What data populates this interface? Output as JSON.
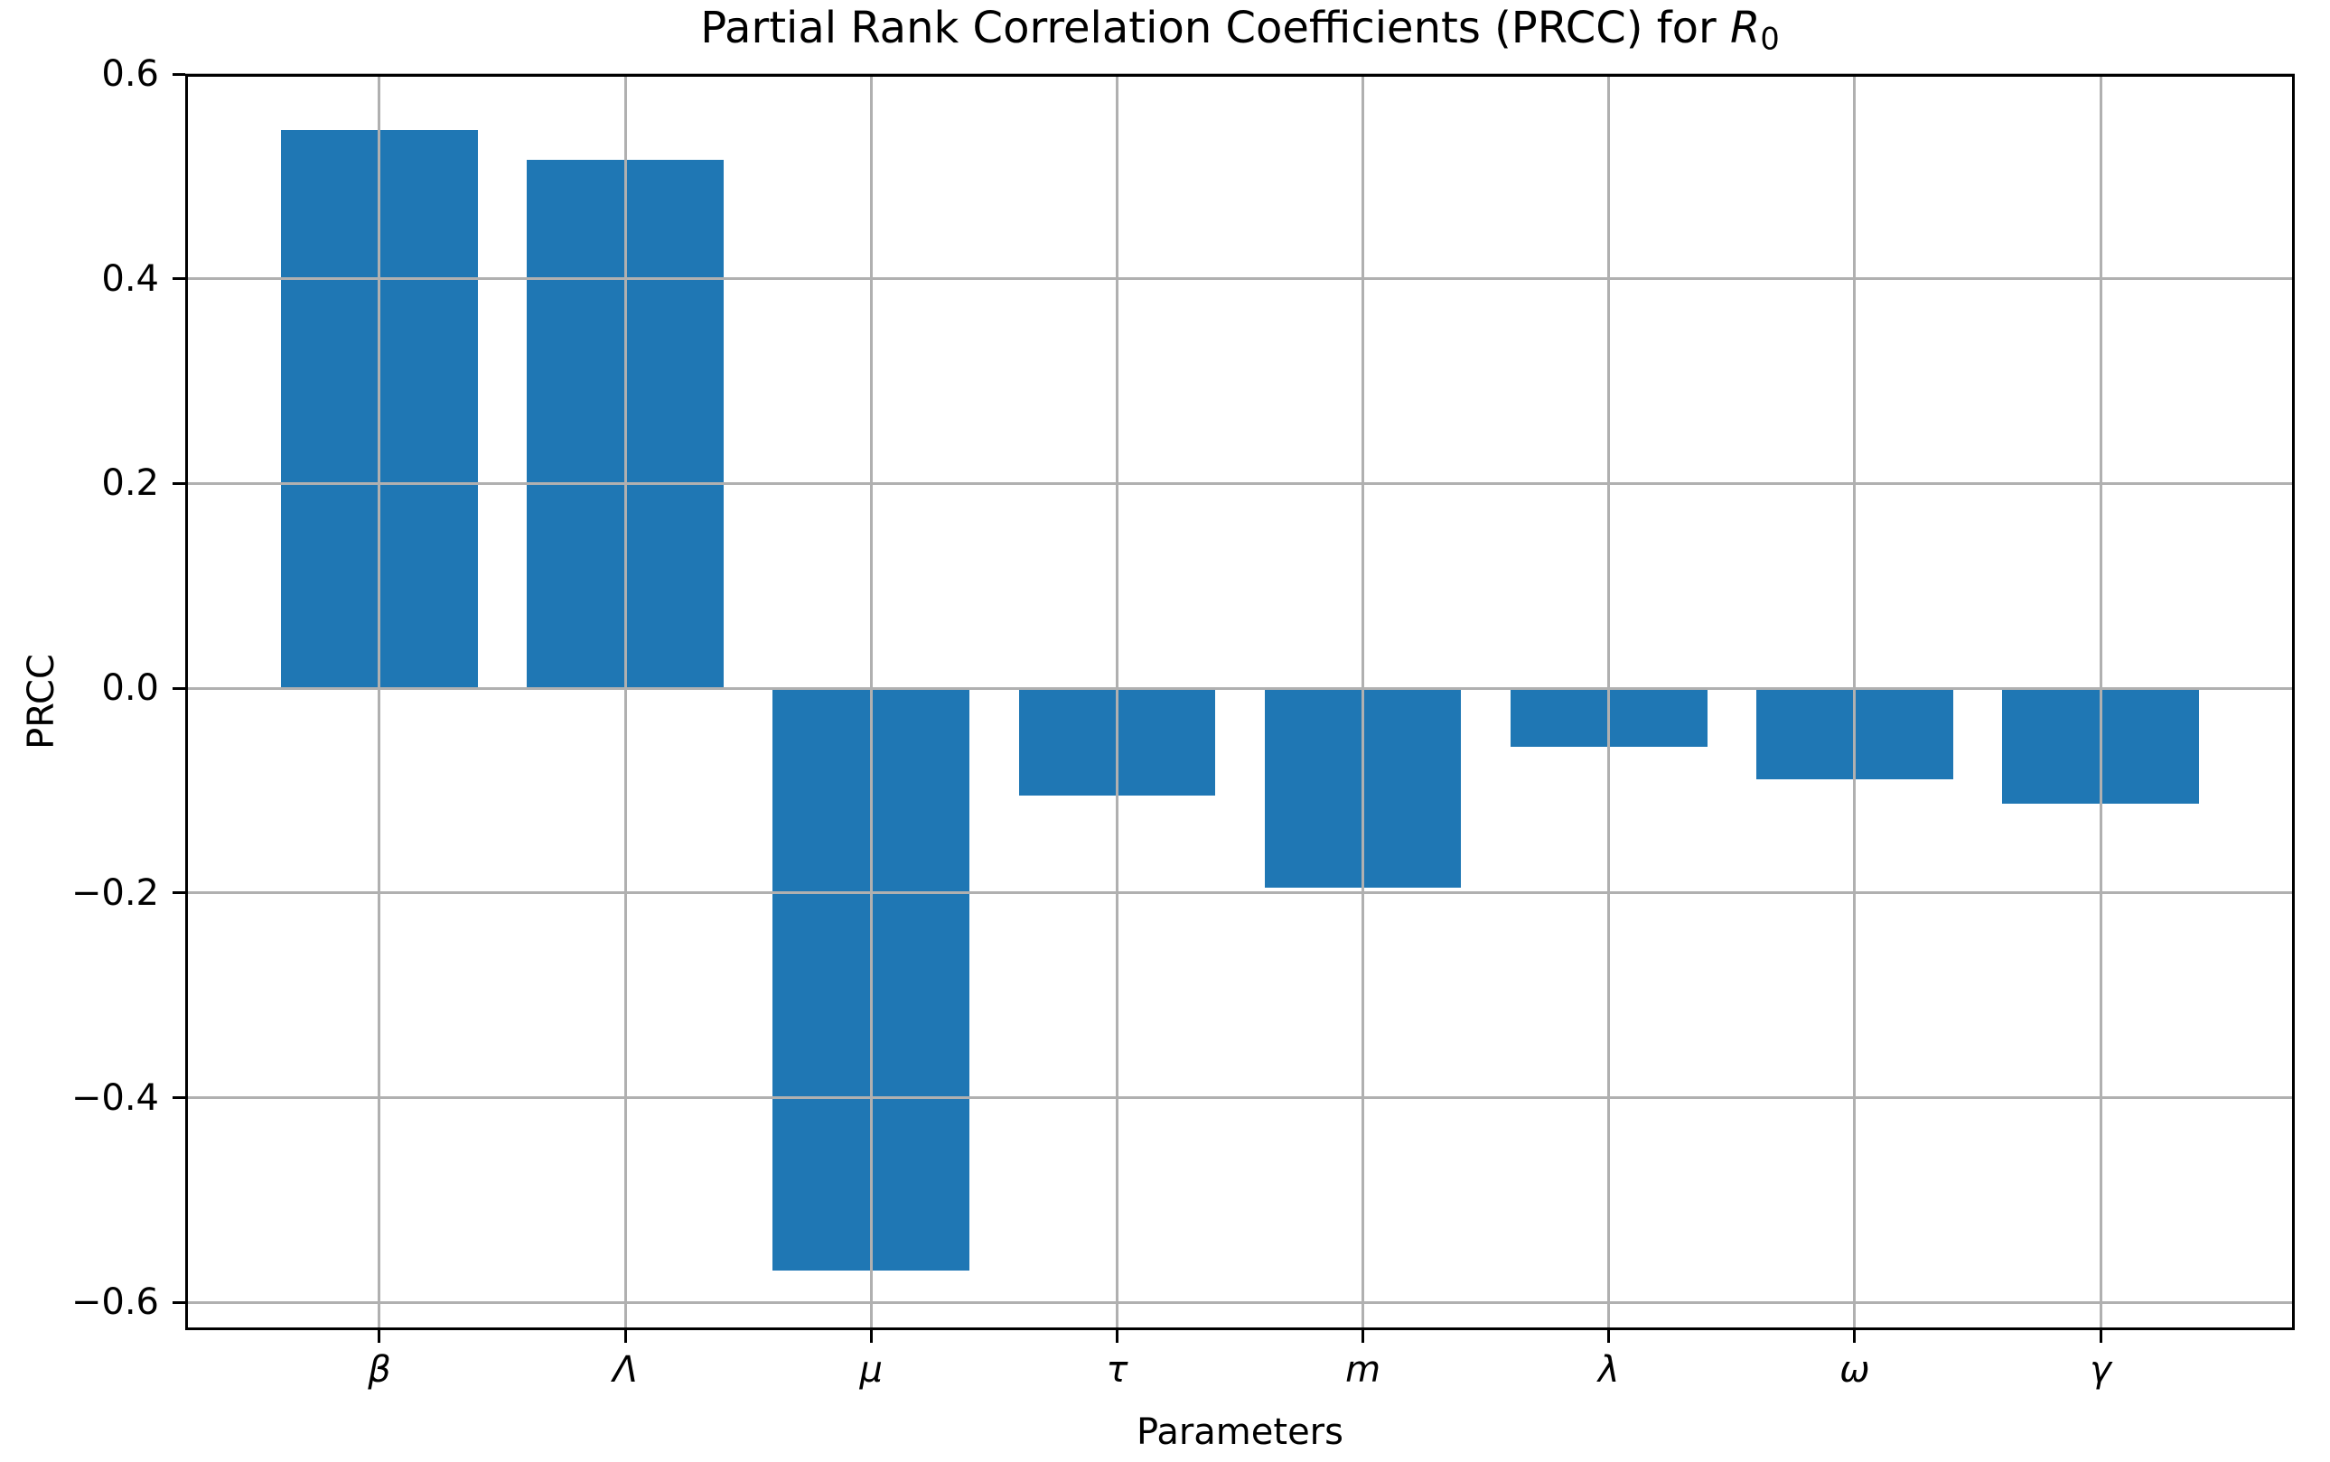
{
  "chart_data": {
    "type": "bar",
    "title": {
      "prefix": "Partial Rank Correlation Coefficients (PRCC) for ",
      "math_var": "R",
      "math_sub": "0"
    },
    "xlabel": "Parameters",
    "ylabel": "PRCC",
    "categories": [
      "β",
      "Λ",
      "μ",
      "τ",
      "m",
      "λ",
      "ω",
      "γ"
    ],
    "values": [
      0.545,
      0.516,
      -0.569,
      -0.105,
      -0.195,
      -0.057,
      -0.089,
      -0.113
    ],
    "yticks": [
      0.6,
      0.4,
      0.2,
      0.0,
      -0.2,
      -0.4,
      -0.6
    ],
    "ytick_labels": [
      "0.6",
      "0.4",
      "0.2",
      "0.0",
      "−0.2",
      "−0.4",
      "−0.6"
    ],
    "ylim": [
      -0.627,
      0.6
    ],
    "xlim": [
      -0.79,
      7.79
    ],
    "bar_width_units": 0.8,
    "grid": true,
    "legend": "none",
    "bar_color": "#1f77b4",
    "grid_color": "#b0b0b0",
    "spine_color": "#000000",
    "text_color": "#000000",
    "background_color": "#ffffff"
  }
}
